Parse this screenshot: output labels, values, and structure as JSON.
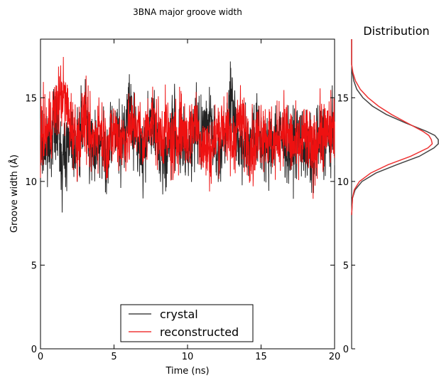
{
  "chart_data": [
    {
      "type": "line",
      "title": "3BNA major groove width",
      "xlabel": "Time (ns)",
      "ylabel": "Groove width (Å)",
      "xlim": [
        0,
        20
      ],
      "ylim": [
        0,
        18.5
      ],
      "xticks": [
        "0",
        "5",
        "10",
        "15",
        "20"
      ],
      "yticks": [
        "0",
        "5",
        "10",
        "15"
      ],
      "grid": false,
      "legend_position": "bottom-center",
      "series": [
        {
          "name": "crystal",
          "color": "#222222",
          "x": [
            0,
            0.5,
            1,
            1.5,
            2,
            2.5,
            3,
            3.5,
            4,
            4.5,
            5,
            5.5,
            6,
            6.5,
            7,
            7.5,
            8,
            8.5,
            9,
            9.5,
            10,
            10.5,
            11,
            11.5,
            12,
            12.5,
            13,
            13.5,
            14,
            14.5,
            15,
            15.5,
            16,
            16.5,
            17,
            17.5,
            18,
            18.5,
            19,
            19.5,
            20
          ],
          "y": [
            12.0,
            11.8,
            13.6,
            11.2,
            12.9,
            12.0,
            14.2,
            11.5,
            12.8,
            10.6,
            13.4,
            11.9,
            14.8,
            12.4,
            11.7,
            13.9,
            12.3,
            11.0,
            13.5,
            12.2,
            11.8,
            13.1,
            12.6,
            14.3,
            11.4,
            12.9,
            15.2,
            12.1,
            11.9,
            13.3,
            12.4,
            11.6,
            13.0,
            12.5,
            11.7,
            12.8,
            12.0,
            11.3,
            12.7,
            12.3,
            12.9
          ]
        },
        {
          "name": "reconstructed",
          "color": "#ee1111",
          "x": [
            0,
            0.5,
            1,
            1.5,
            2,
            2.5,
            3,
            3.5,
            4,
            4.5,
            5,
            5.5,
            6,
            6.5,
            7,
            7.5,
            8,
            8.5,
            9,
            9.5,
            10,
            10.5,
            11,
            11.5,
            12,
            12.5,
            13,
            13.5,
            14,
            14.5,
            15,
            15.5,
            16,
            16.5,
            17,
            17.5,
            18,
            18.5,
            19,
            19.5,
            20
          ],
          "y": [
            12.6,
            13.1,
            14.2,
            15.4,
            13.6,
            12.4,
            13.8,
            12.2,
            13.5,
            12.0,
            13.0,
            12.5,
            12.8,
            13.6,
            12.3,
            14.0,
            12.7,
            13.2,
            11.9,
            13.4,
            12.6,
            13.8,
            12.2,
            11.7,
            12.9,
            13.5,
            12.1,
            13.7,
            12.8,
            11.9,
            13.3,
            12.6,
            12.1,
            13.4,
            12.4,
            11.8,
            12.7,
            11.6,
            12.9,
            12.8,
            13.2
          ]
        }
      ]
    },
    {
      "type": "line",
      "title": "Distribution",
      "xlabel": "",
      "ylabel": "",
      "ylim": [
        0,
        18.5
      ],
      "yticks": [
        "0",
        "5",
        "10",
        "15"
      ],
      "grid": false,
      "series": [
        {
          "name": "crystal",
          "color": "#444444",
          "y": [
            8.0,
            9.0,
            9.5,
            10.0,
            10.5,
            11.0,
            11.5,
            12.0,
            12.25,
            12.5,
            12.75,
            13.0,
            13.5,
            14.0,
            14.5,
            15.0,
            15.5,
            16.0,
            16.5,
            17.0,
            18.5
          ],
          "density": [
            0.0,
            0.01,
            0.04,
            0.12,
            0.28,
            0.52,
            0.78,
            0.95,
            1.0,
            1.0,
            0.96,
            0.86,
            0.62,
            0.4,
            0.24,
            0.13,
            0.06,
            0.025,
            0.01,
            0.0,
            0.0
          ]
        },
        {
          "name": "reconstructed",
          "color": "#ee3333",
          "y": [
            8.0,
            9.0,
            9.5,
            10.0,
            10.5,
            11.0,
            11.5,
            12.0,
            12.25,
            12.5,
            12.75,
            13.0,
            13.5,
            14.0,
            14.5,
            15.0,
            15.5,
            16.0,
            16.5,
            17.0,
            18.5
          ],
          "density": [
            0.0,
            0.01,
            0.03,
            0.09,
            0.22,
            0.42,
            0.68,
            0.88,
            0.93,
            0.92,
            0.89,
            0.82,
            0.64,
            0.46,
            0.31,
            0.19,
            0.1,
            0.045,
            0.015,
            0.0,
            0.0
          ]
        }
      ]
    }
  ]
}
